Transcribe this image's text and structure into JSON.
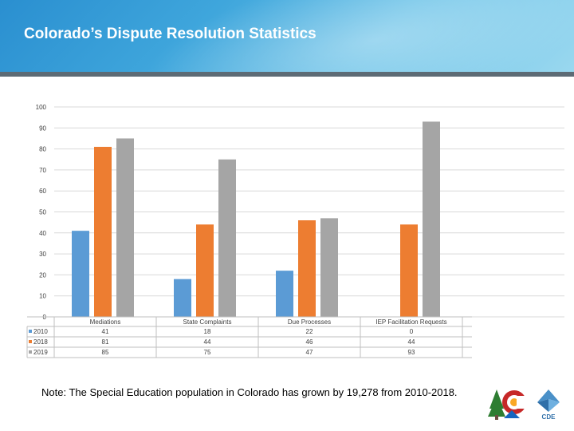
{
  "slide": {
    "title": "Colorado’s Dispute Resolution Statistics",
    "note": "Note:  The Special Education population in Colorado has grown by 19,278 from 2010-2018."
  },
  "logos": {
    "right_label": "CDE"
  },
  "colors": {
    "s2010": "#5b9bd5",
    "s2018": "#ed7d31",
    "s2019": "#a5a5a5",
    "header": "#3fa6dc",
    "grid": "#d9d9d9"
  },
  "chart_data": {
    "type": "bar",
    "categories": [
      "Mediations",
      "State Complaints",
      "Due Processes",
      "IEP Facilitation Requests"
    ],
    "series": [
      {
        "name": "2010",
        "values": [
          41,
          18,
          22,
          0
        ]
      },
      {
        "name": "2018",
        "values": [
          81,
          44,
          46,
          44
        ]
      },
      {
        "name": "2019",
        "values": [
          85,
          75,
          47,
          93
        ]
      }
    ],
    "ylim": [
      0,
      100
    ],
    "yticks": [
      0,
      10,
      20,
      30,
      40,
      50,
      60,
      70,
      80,
      90,
      100
    ],
    "grid": true,
    "data_table": true
  }
}
